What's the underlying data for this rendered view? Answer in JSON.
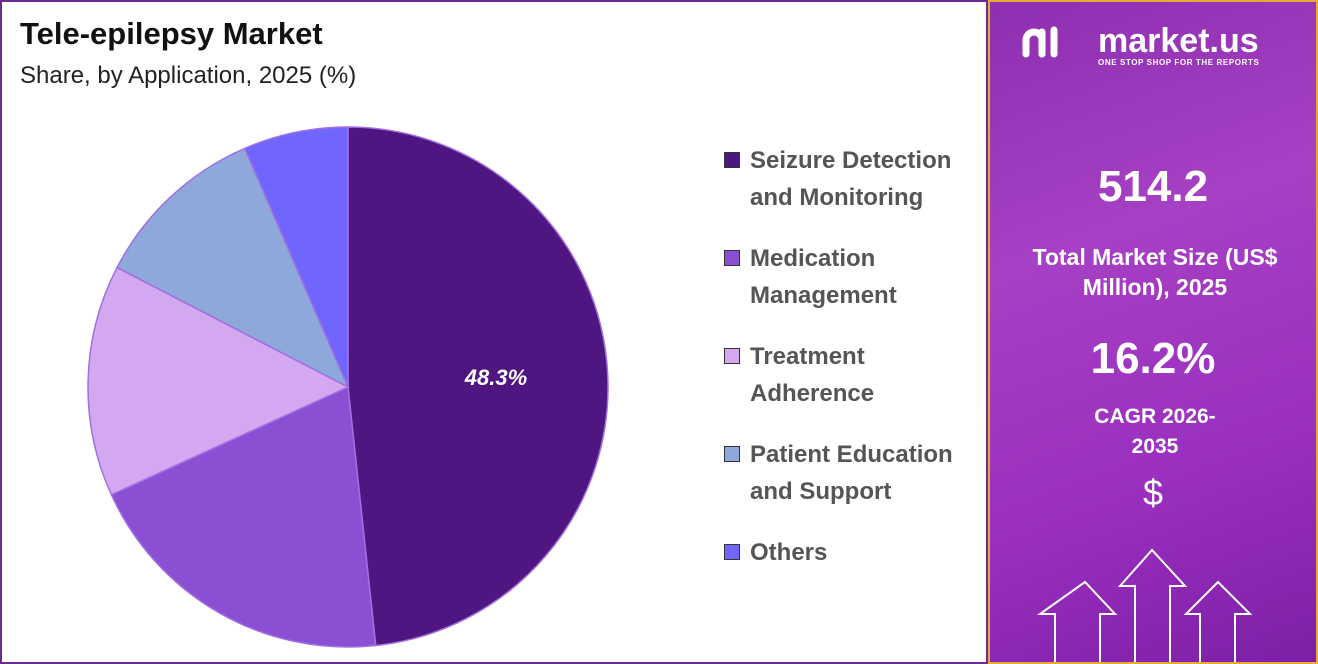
{
  "chart_data": {
    "type": "pie",
    "title": "Tele-epilepsy Market",
    "subtitle": "Share, by Application, 2025 (%)",
    "categories": [
      "Seizure Detection and Monitoring",
      "Medication Management",
      "Treatment Adherence",
      "Patient Education and Support",
      "Others"
    ],
    "values": [
      48.3,
      19.9,
      14.4,
      10.9,
      6.5
    ],
    "value_labels": [
      "48.3%",
      null,
      null,
      null,
      null
    ],
    "colors": [
      "#4f1580",
      "#8b4fd4",
      "#d4a8f0",
      "#8ea8dc",
      "#7066ff"
    ],
    "legend": "right"
  },
  "side_panel": {
    "brand": "market.us",
    "tagline": "ONE STOP SHOP FOR THE REPORTS",
    "market_size": "514.2",
    "market_size_label": "Total Market Size (US$ Million), 2025",
    "cagr": "16.2%",
    "cagr_label": "CAGR 2026-2035",
    "currency_symbol": "$"
  }
}
